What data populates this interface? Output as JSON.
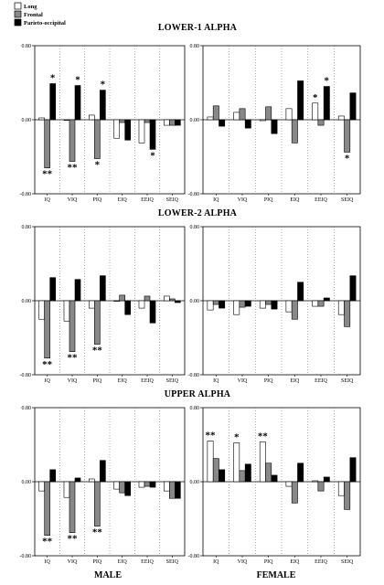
{
  "legend": [
    {
      "name": "Long",
      "color": "#ffffff"
    },
    {
      "name": "Frontal",
      "color": "#888888"
    },
    {
      "name": "Parieto-occipital",
      "color": "#000000"
    }
  ],
  "y_tick_labels": [
    "0.80",
    "0.00",
    "-0.80"
  ],
  "footer": {
    "left": "MALE",
    "right": "FEMALE"
  },
  "chart_data": [
    {
      "type": "bar",
      "section": "LOWER-1 ALPHA",
      "panel": "MALE",
      "categories": [
        "IQ",
        "VIQ",
        "PIQ",
        "EIQ",
        "EEIQ",
        "SEIQ"
      ],
      "ylim": [
        -0.8,
        0.8
      ],
      "grid": false,
      "series": [
        {
          "name": "Long",
          "values": [
            0.02,
            0.0,
            0.05,
            -0.2,
            -0.25,
            -0.06
          ]
        },
        {
          "name": "Frontal",
          "values": [
            -0.52,
            -0.45,
            -0.42,
            -0.03,
            -0.03,
            -0.06
          ]
        },
        {
          "name": "Parieto-occipital",
          "values": [
            0.39,
            0.37,
            0.32,
            -0.22,
            -0.32,
            -0.06
          ]
        }
      ],
      "annotations": [
        {
          "category": "IQ",
          "series": "Parieto-occipital",
          "text": "*"
        },
        {
          "category": "VIQ",
          "series": "Parieto-occipital",
          "text": "*"
        },
        {
          "category": "PIQ",
          "series": "Parieto-occipital",
          "text": "*"
        },
        {
          "category": "IQ",
          "series": "Frontal",
          "text": "**"
        },
        {
          "category": "VIQ",
          "series": "Frontal",
          "text": "**"
        },
        {
          "category": "PIQ",
          "series": "Frontal",
          "text": "*"
        },
        {
          "category": "EEIQ",
          "series": "Parieto-occipital",
          "text": "*"
        }
      ]
    },
    {
      "type": "bar",
      "section": "LOWER-1 ALPHA",
      "panel": "FEMALE",
      "categories": [
        "IQ",
        "VIQ",
        "PIQ",
        "EIQ",
        "EEIQ",
        "SEIQ"
      ],
      "ylim": [
        -0.8,
        0.8
      ],
      "grid": false,
      "series": [
        {
          "name": "Long",
          "values": [
            0.03,
            0.08,
            -0.01,
            0.12,
            0.18,
            0.04
          ]
        },
        {
          "name": "Frontal",
          "values": [
            0.15,
            0.12,
            0.14,
            -0.25,
            -0.06,
            -0.35
          ]
        },
        {
          "name": "Parieto-occipital",
          "values": [
            -0.07,
            -0.09,
            -0.15,
            0.42,
            0.36,
            0.29
          ]
        }
      ],
      "annotations": [
        {
          "category": "EEIQ",
          "series": "Long",
          "text": "*"
        },
        {
          "category": "EEIQ",
          "series": "Parieto-occipital",
          "text": "*"
        },
        {
          "category": "SEIQ",
          "series": "Frontal",
          "text": "*"
        }
      ]
    },
    {
      "type": "bar",
      "section": "LOWER-2 ALPHA",
      "panel": "MALE",
      "categories": [
        "IQ",
        "VIQ",
        "PIQ",
        "EIQ",
        "EEIQ",
        "SEIQ"
      ],
      "ylim": [
        -0.8,
        0.8
      ],
      "grid": false,
      "series": [
        {
          "name": "Long",
          "values": [
            -0.2,
            -0.22,
            -0.08,
            0.0,
            -0.08,
            0.05
          ]
        },
        {
          "name": "Frontal",
          "values": [
            -0.62,
            -0.55,
            -0.47,
            0.06,
            0.05,
            0.02
          ]
        },
        {
          "name": "Parieto-occipital",
          "values": [
            0.25,
            0.23,
            0.27,
            -0.15,
            -0.24,
            -0.02
          ]
        }
      ],
      "annotations": [
        {
          "category": "IQ",
          "series": "Frontal",
          "text": "**"
        },
        {
          "category": "VIQ",
          "series": "Frontal",
          "text": "**"
        },
        {
          "category": "PIQ",
          "series": "Frontal",
          "text": "**"
        }
      ]
    },
    {
      "type": "bar",
      "section": "LOWER-2 ALPHA",
      "panel": "FEMALE",
      "categories": [
        "IQ",
        "VIQ",
        "PIQ",
        "EIQ",
        "EEIQ",
        "SEIQ"
      ],
      "ylim": [
        -0.8,
        0.8
      ],
      "grid": false,
      "series": [
        {
          "name": "Long",
          "values": [
            -0.1,
            -0.15,
            -0.08,
            -0.12,
            -0.06,
            -0.15
          ]
        },
        {
          "name": "Frontal",
          "values": [
            -0.04,
            -0.07,
            -0.04,
            -0.2,
            -0.06,
            -0.28
          ]
        },
        {
          "name": "Parieto-occipital",
          "values": [
            -0.08,
            -0.06,
            -0.09,
            0.2,
            0.03,
            0.27
          ]
        }
      ],
      "annotations": []
    },
    {
      "type": "bar",
      "section": "UPPER ALPHA",
      "panel": "MALE",
      "categories": [
        "IQ",
        "VIQ",
        "PIQ",
        "EIQ",
        "EEIQ",
        "SEIQ"
      ],
      "ylim": [
        -0.8,
        0.8
      ],
      "grid": false,
      "series": [
        {
          "name": "Long",
          "values": [
            -0.1,
            -0.17,
            0.03,
            -0.08,
            -0.06,
            -0.1
          ]
        },
        {
          "name": "Frontal",
          "values": [
            -0.58,
            -0.55,
            -0.48,
            -0.12,
            -0.05,
            -0.18
          ]
        },
        {
          "name": "Parieto-occipital",
          "values": [
            0.13,
            0.04,
            0.23,
            -0.15,
            -0.06,
            -0.18
          ]
        }
      ],
      "annotations": [
        {
          "category": "IQ",
          "series": "Frontal",
          "text": "**"
        },
        {
          "category": "VIQ",
          "series": "Frontal",
          "text": "**"
        },
        {
          "category": "PIQ",
          "series": "Frontal",
          "text": "**"
        }
      ]
    },
    {
      "type": "bar",
      "section": "UPPER ALPHA",
      "panel": "FEMALE",
      "categories": [
        "IQ",
        "VIQ",
        "PIQ",
        "EIQ",
        "EEIQ",
        "SEIQ"
      ],
      "ylim": [
        -0.8,
        0.8
      ],
      "grid": false,
      "series": [
        {
          "name": "Long",
          "values": [
            0.44,
            0.42,
            0.43,
            -0.05,
            0.01,
            -0.15
          ]
        },
        {
          "name": "Frontal",
          "values": [
            0.25,
            0.12,
            0.2,
            -0.23,
            -0.1,
            -0.3
          ]
        },
        {
          "name": "Parieto-occipital",
          "values": [
            0.13,
            0.19,
            0.07,
            0.2,
            0.05,
            0.26
          ]
        }
      ],
      "annotations": [
        {
          "category": "IQ",
          "series": "Long",
          "text": "**"
        },
        {
          "category": "VIQ",
          "series": "Long",
          "text": "*"
        },
        {
          "category": "PIQ",
          "series": "Long",
          "text": "**"
        }
      ]
    }
  ]
}
